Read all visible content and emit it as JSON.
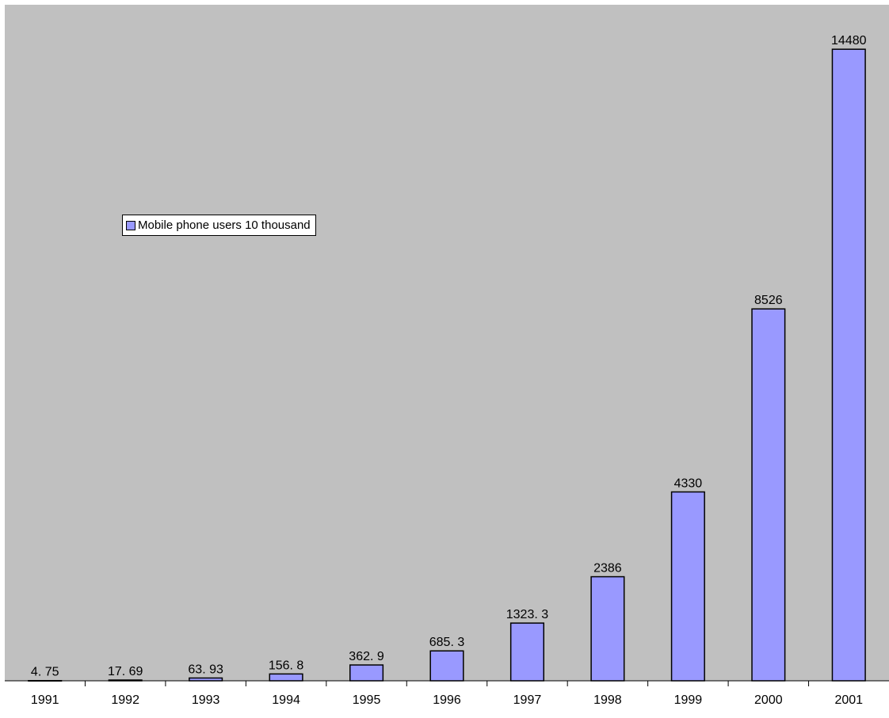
{
  "chart_data": {
    "type": "bar",
    "categories": [
      "1991",
      "1992",
      "1993",
      "1994",
      "1995",
      "1996",
      "1997",
      "1998",
      "1999",
      "2000",
      "2001"
    ],
    "series": [
      {
        "name": "Mobile phone users 10 thousand",
        "values": [
          4.75,
          17.69,
          63.93,
          156.8,
          362.9,
          685.3,
          1323.3,
          2386,
          4330,
          8526,
          14480
        ],
        "labels": [
          "4. 75",
          "17. 69",
          "63. 93",
          "156. 8",
          "362. 9",
          "685. 3",
          "1323. 3",
          "2386",
          "4330",
          "8526",
          "14480"
        ],
        "color": "#9999ff"
      }
    ],
    "ylim": [
      0,
      15500
    ],
    "plot_background": "#c0c0c0",
    "grid": false,
    "legend_placement": "upper-left",
    "legend_label": "Mobile phone users 10 thousand"
  }
}
